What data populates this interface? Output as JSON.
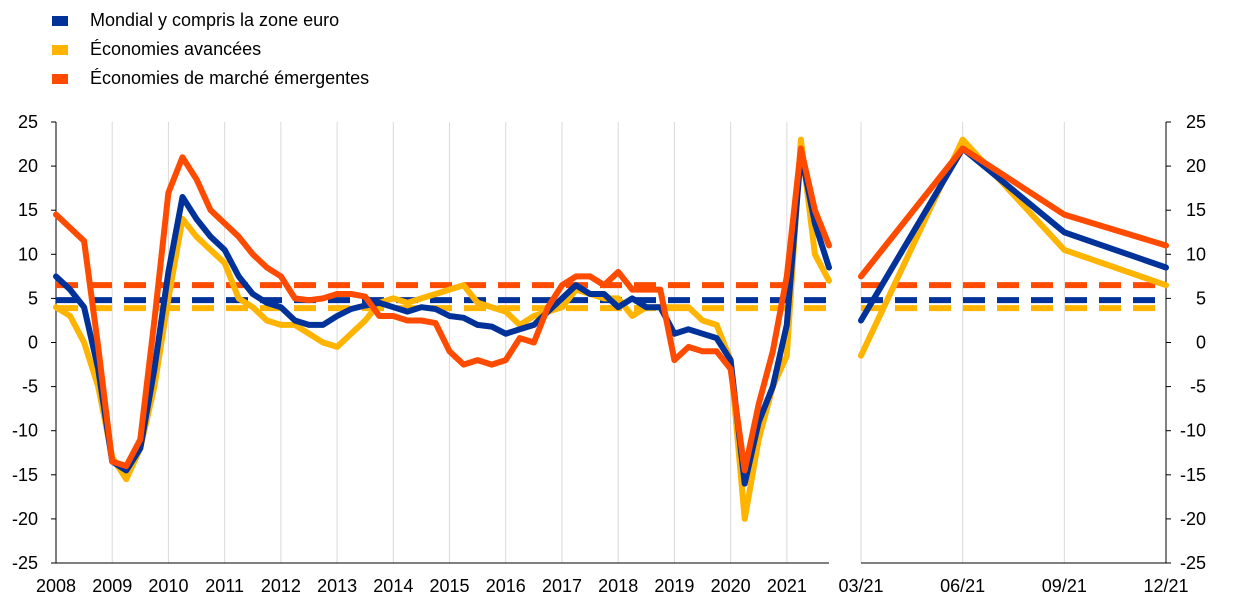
{
  "legend": {
    "items": [
      {
        "label": "Mondial y compris la zone euro",
        "color": "#003299"
      },
      {
        "label": "Économies avancées",
        "color": "#FFB400"
      },
      {
        "label": "Économies de marché émergentes",
        "color": "#FF4B00"
      }
    ]
  },
  "chart_data": [
    {
      "type": "line",
      "title": "",
      "xlabel": "",
      "ylabel": "",
      "xlim": [
        2008,
        2021.75
      ],
      "ylim": [
        -25,
        25
      ],
      "yticks": [
        -25,
        -20,
        -15,
        -10,
        -5,
        0,
        5,
        10,
        15,
        20,
        25
      ],
      "xtick_labels": [
        "2008",
        "2009",
        "2010",
        "2011",
        "2012",
        "2013",
        "2014",
        "2015",
        "2016",
        "2017",
        "2018",
        "2019",
        "2020",
        "2021"
      ],
      "grid": "vertical",
      "legend": "top-left",
      "x": [
        2008.0,
        2008.25,
        2008.5,
        2008.75,
        2009.0,
        2009.25,
        2009.5,
        2009.75,
        2010.0,
        2010.25,
        2010.5,
        2010.75,
        2011.0,
        2011.25,
        2011.5,
        2011.75,
        2012.0,
        2012.25,
        2012.5,
        2012.75,
        2013.0,
        2013.25,
        2013.5,
        2013.75,
        2014.0,
        2014.25,
        2014.5,
        2014.75,
        2015.0,
        2015.25,
        2015.5,
        2015.75,
        2016.0,
        2016.25,
        2016.5,
        2016.75,
        2017.0,
        2017.25,
        2017.5,
        2017.75,
        2018.0,
        2018.25,
        2018.5,
        2018.75,
        2019.0,
        2019.25,
        2019.5,
        2019.75,
        2020.0,
        2020.25,
        2020.5,
        2020.75,
        2021.0,
        2021.25,
        2021.5,
        2021.75
      ],
      "series": [
        {
          "name": "Mondial y compris la zone euro",
          "color": "#003299",
          "values": [
            7.5,
            6.0,
            4.0,
            -3.0,
            -13.5,
            -14.5,
            -12.0,
            -3.0,
            8.0,
            16.5,
            14.0,
            12.0,
            10.5,
            7.5,
            5.5,
            4.5,
            4.0,
            2.5,
            2.0,
            2.0,
            3.0,
            3.8,
            4.2,
            4.5,
            4.0,
            3.5,
            4.0,
            3.8,
            3.0,
            2.8,
            2.0,
            1.8,
            1.0,
            1.5,
            2.0,
            3.5,
            5.0,
            6.5,
            5.5,
            5.5,
            4.0,
            5.0,
            4.0,
            4.0,
            1.0,
            1.5,
            1.0,
            0.5,
            -2.0,
            -16.0,
            -9.0,
            -5.0,
            2.0,
            21.5,
            13.5,
            8.5
          ]
        },
        {
          "name": "Économies avancées",
          "color": "#FFB400",
          "values": [
            4.0,
            3.0,
            0.0,
            -5.0,
            -13.0,
            -15.5,
            -12.0,
            -5.0,
            5.0,
            14.0,
            12.0,
            10.5,
            9.0,
            5.0,
            4.0,
            2.5,
            2.0,
            2.0,
            1.0,
            0.0,
            -0.5,
            1.0,
            2.5,
            4.5,
            5.0,
            4.5,
            5.0,
            5.5,
            6.0,
            6.5,
            4.5,
            4.0,
            3.5,
            2.0,
            3.0,
            3.5,
            4.0,
            6.0,
            5.5,
            5.0,
            5.0,
            3.0,
            4.0,
            4.0,
            4.0,
            4.0,
            2.5,
            2.0,
            -2.0,
            -20.0,
            -11.0,
            -5.0,
            -1.5,
            23.0,
            10.0,
            7.0
          ]
        },
        {
          "name": "Économies de marché émergentes",
          "color": "#FF4B00",
          "values": [
            14.5,
            13.0,
            11.5,
            -0.5,
            -13.5,
            -14.0,
            -11.0,
            2.5,
            17.0,
            21.0,
            18.5,
            15.0,
            13.5,
            12.0,
            10.0,
            8.5,
            7.5,
            5.0,
            4.8,
            5.0,
            5.5,
            5.5,
            5.2,
            3.0,
            3.0,
            2.5,
            2.5,
            2.2,
            -1.0,
            -2.5,
            -2.0,
            -2.5,
            -2.0,
            0.5,
            0.0,
            4.0,
            6.5,
            7.5,
            7.5,
            6.5,
            8.0,
            6.0,
            6.0,
            6.0,
            -2.0,
            -0.5,
            -1.0,
            -1.0,
            -3.0,
            -14.5,
            -7.0,
            -1.0,
            7.5,
            22.0,
            15.0,
            11.0
          ]
        }
      ],
      "reference_lines": [
        {
          "series": "Mondial y compris la zone euro",
          "value": 4.8,
          "color": "#003299",
          "style": "dashed"
        },
        {
          "series": "Économies avancées",
          "value": 3.9,
          "color": "#FFB400",
          "style": "dashed"
        },
        {
          "series": "Économies de marché émergentes",
          "value": 6.5,
          "color": "#FF4B00",
          "style": "dashed"
        }
      ]
    },
    {
      "type": "line",
      "title": "",
      "xlabel": "",
      "ylabel": "",
      "ylim": [
        -25,
        25
      ],
      "yticks": [
        -25,
        -20,
        -15,
        -10,
        -5,
        0,
        5,
        10,
        15,
        20,
        25
      ],
      "categories": [
        "03/21",
        "06/21",
        "09/21",
        "12/21"
      ],
      "grid": "vertical",
      "series": [
        {
          "name": "Mondial y compris la zone euro",
          "color": "#003299",
          "values": [
            2.5,
            22.0,
            12.5,
            8.5
          ]
        },
        {
          "name": "Économies avancées",
          "color": "#FFB400",
          "values": [
            -1.5,
            23.0,
            10.5,
            6.5
          ]
        },
        {
          "name": "Économies de marché émergentes",
          "color": "#FF4B00",
          "values": [
            7.5,
            22.0,
            14.5,
            11.0
          ]
        }
      ],
      "reference_lines": [
        {
          "series": "Mondial y compris la zone euro",
          "value": 4.8,
          "color": "#003299",
          "style": "dashed"
        },
        {
          "series": "Économies avancées",
          "value": 3.9,
          "color": "#FFB400",
          "style": "dashed"
        },
        {
          "series": "Économies de marché émergentes",
          "value": 6.5,
          "color": "#FF4B00",
          "style": "dashed"
        }
      ]
    }
  ]
}
